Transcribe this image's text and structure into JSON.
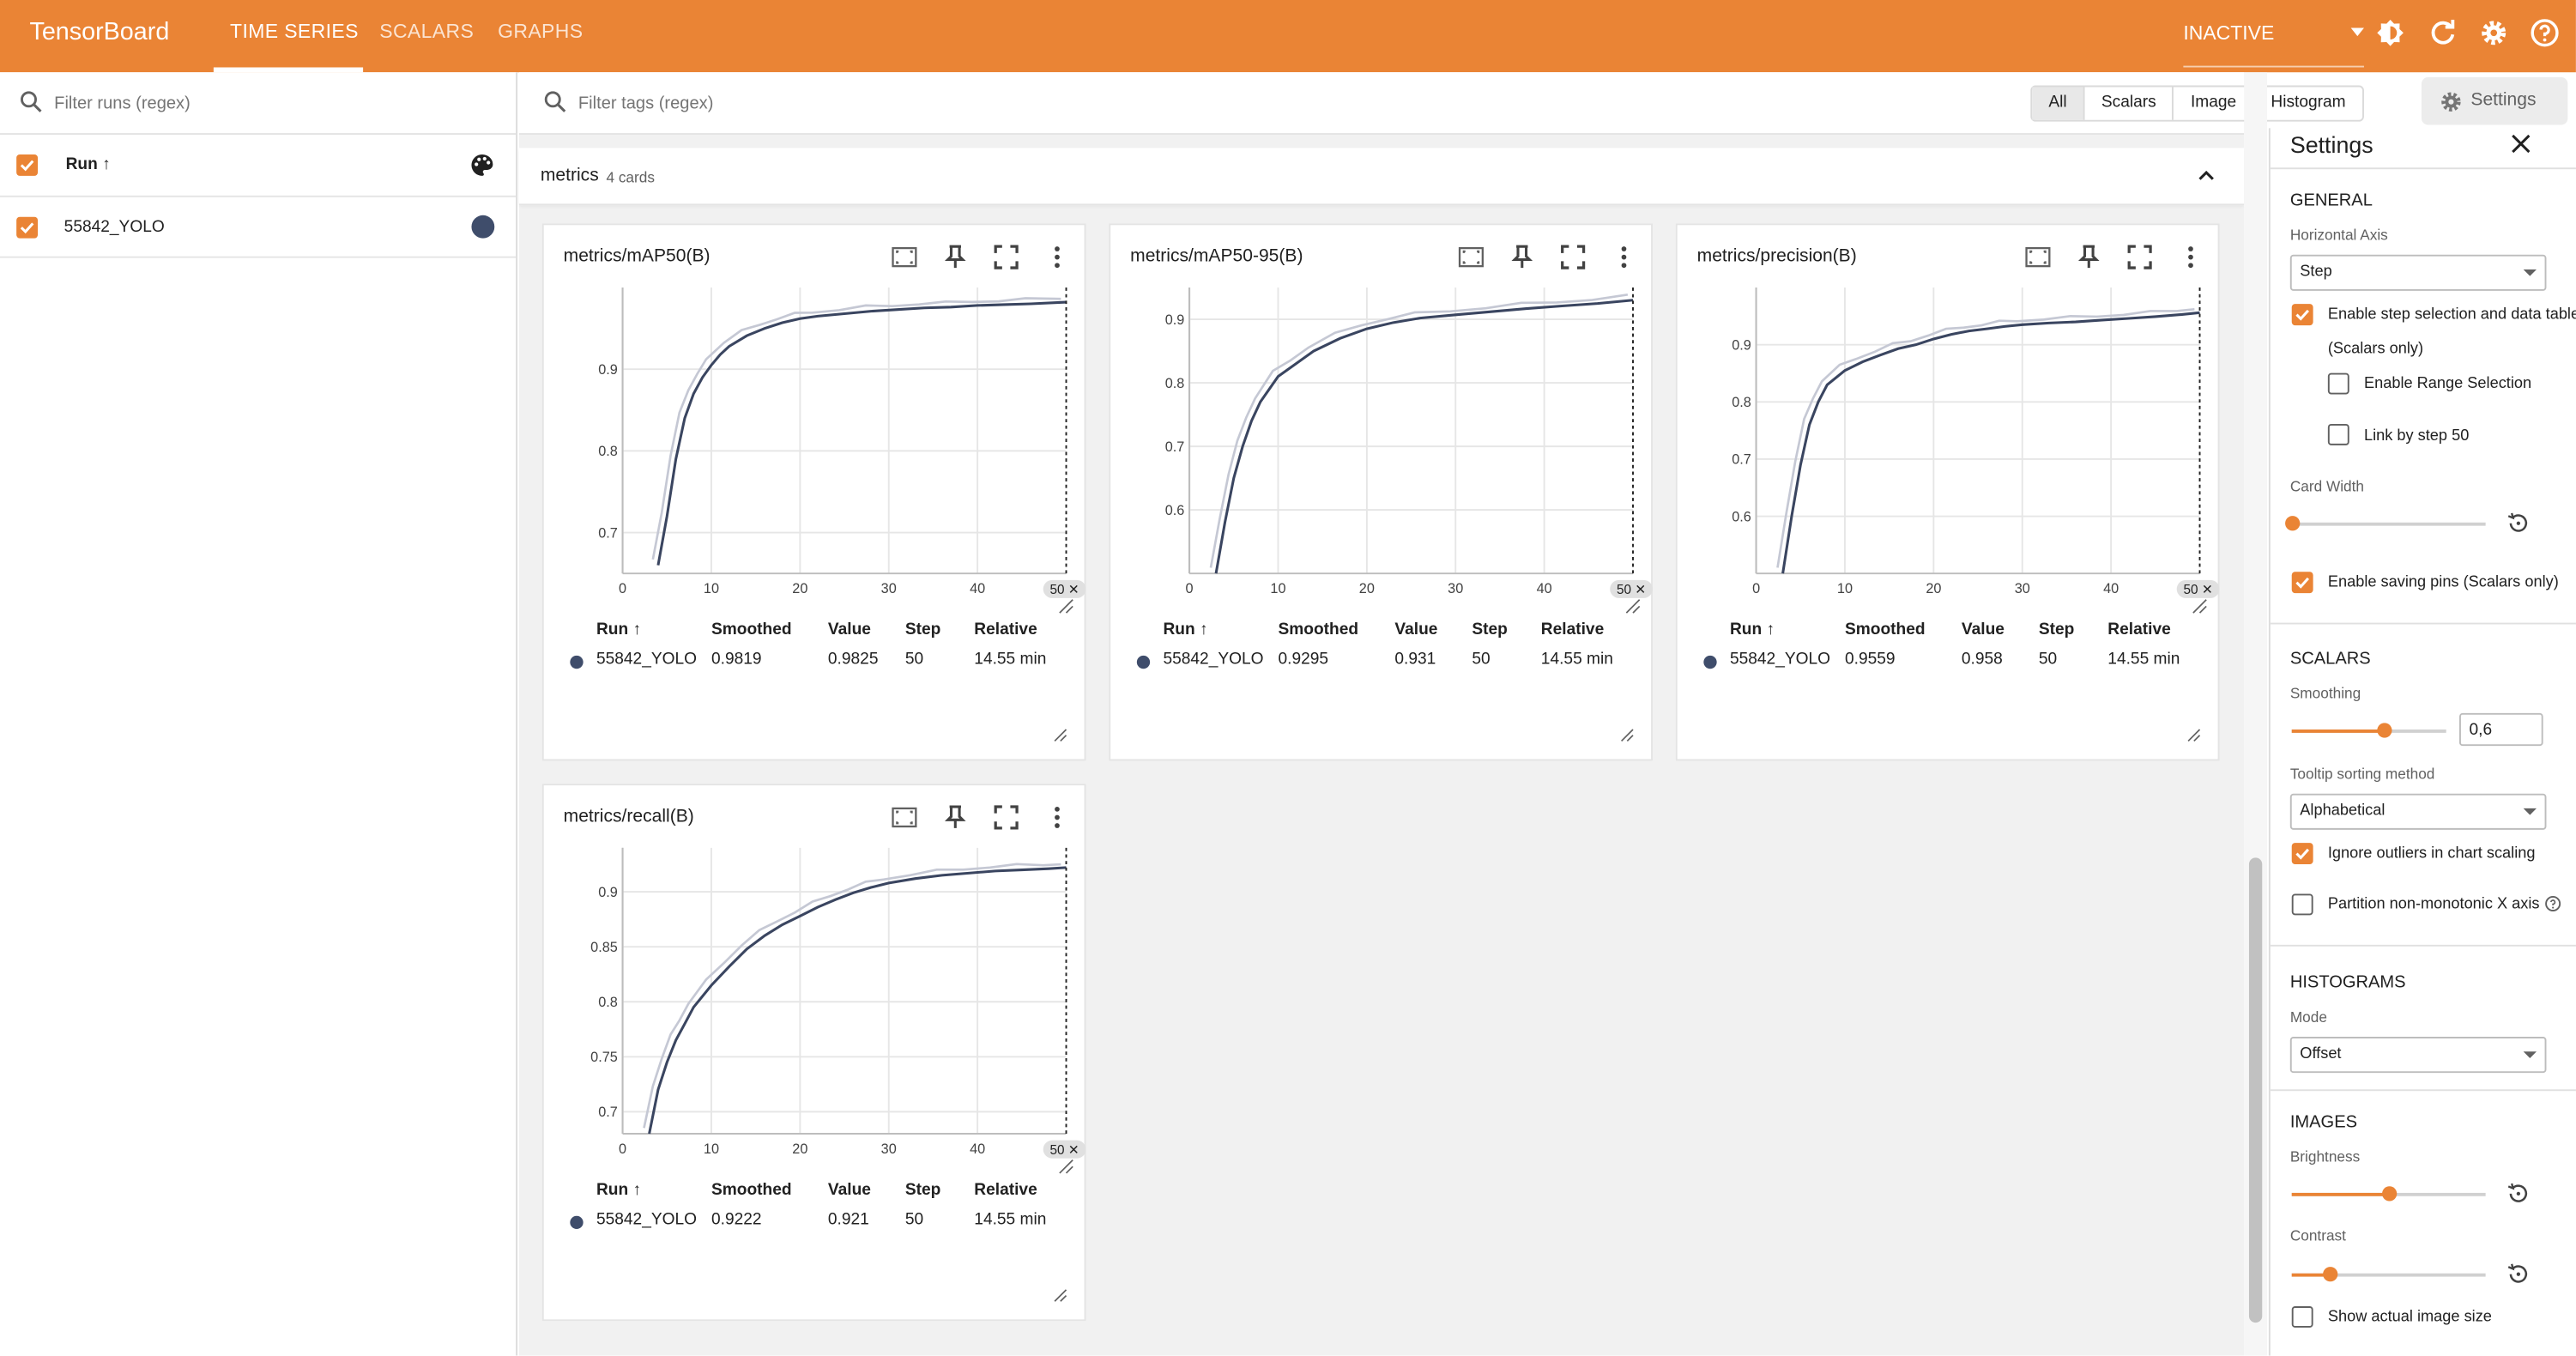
{
  "header": {
    "brand": "TensorBoard",
    "tabs": [
      "TIME SERIES",
      "SCALARS",
      "GRAPHS"
    ],
    "active_tab": "TIME SERIES",
    "reload_status": "INACTIVE",
    "icons": [
      "dark-mode-icon",
      "reload-icon",
      "settings-gear-icon",
      "help-icon"
    ],
    "bar_color": "#ea8435"
  },
  "sidebar": {
    "filter_placeholder": "Filter runs (regex)",
    "run_column_label": "Run ↑",
    "runs": [
      {
        "name": "55842_YOLO",
        "checked": true,
        "color": "#3f4d6b"
      }
    ]
  },
  "main": {
    "filter_placeholder": "Filter tags (regex)",
    "type_filters": [
      "All",
      "Scalars",
      "Image",
      "Histogram"
    ],
    "settings_button": "Settings",
    "group": {
      "name": "metrics",
      "count_label": "4 cards"
    },
    "table_headers": [
      "Run ↑",
      "Smoothed",
      "Value",
      "Step",
      "Relative"
    ],
    "x_ticks": [
      "0",
      "10",
      "20",
      "30",
      "40"
    ],
    "step_marker_label": "50 ✕",
    "cards": [
      {
        "title": "metrics/mAP50(B)",
        "y_ticks": [
          "0.9",
          "0.8",
          "0.7"
        ],
        "row": {
          "run": "55842_YOLO",
          "smoothed": "0.9819",
          "value": "0.9825",
          "step": "50",
          "relative": "14.55 min"
        }
      },
      {
        "title": "metrics/mAP50-95(B)",
        "y_ticks": [
          "0.9",
          "0.8",
          "0.7",
          "0.6"
        ],
        "row": {
          "run": "55842_YOLO",
          "smoothed": "0.9295",
          "value": "0.931",
          "step": "50",
          "relative": "14.55 min"
        }
      },
      {
        "title": "metrics/precision(B)",
        "y_ticks": [
          "0.9",
          "0.8",
          "0.7",
          "0.6"
        ],
        "row": {
          "run": "55842_YOLO",
          "smoothed": "0.9559",
          "value": "0.958",
          "step": "50",
          "relative": "14.55 min"
        }
      },
      {
        "title": "metrics/recall(B)",
        "y_ticks": [
          "0.9",
          "0.85",
          "0.8",
          "0.75",
          "0.7"
        ],
        "row": {
          "run": "55842_YOLO",
          "smoothed": "0.9222",
          "value": "0.921",
          "step": "50",
          "relative": "14.55 min"
        }
      }
    ]
  },
  "settings": {
    "title": "Settings",
    "general": {
      "title": "GENERAL",
      "horizontal_axis_label": "Horizontal Axis",
      "horizontal_axis_value": "Step",
      "step_selection_label": "Enable step selection and data table",
      "step_selection_sub": "(Scalars only)",
      "range_selection_label": "Enable Range Selection",
      "link_by_step_label": "Link by step 50",
      "card_width_label": "Card Width",
      "card_width_level": 0,
      "saving_pins_label": "Enable saving pins (Scalars only)"
    },
    "scalars": {
      "title": "SCALARS",
      "smoothing_label": "Smoothing",
      "smoothing_value": "0,6",
      "smoothing_level": 0.6,
      "tooltip_label": "Tooltip sorting method",
      "tooltip_value": "Alphabetical",
      "ignore_outliers_label": "Ignore outliers in chart scaling",
      "partition_label": "Partition non-monotonic X axis"
    },
    "histograms": {
      "title": "HISTOGRAMS",
      "mode_label": "Mode",
      "mode_value": "Offset"
    },
    "images": {
      "title": "IMAGES",
      "brightness_label": "Brightness",
      "brightness_level": 0.5,
      "contrast_label": "Contrast",
      "contrast_level": 0.2,
      "actual_size_label": "Show actual image size"
    }
  },
  "chart_data": [
    {
      "type": "line",
      "title": "metrics/mAP50(B)",
      "xlim": [
        0,
        50
      ],
      "ylim": [
        0.65,
        1.0
      ],
      "series": [
        {
          "name": "55842_YOLO",
          "x": [
            4,
            5,
            6,
            7,
            8,
            9,
            10,
            11,
            12,
            14,
            16,
            18,
            20,
            22,
            25,
            28,
            31,
            34,
            37,
            40,
            43,
            46,
            50
          ],
          "y": [
            0.66,
            0.72,
            0.79,
            0.84,
            0.87,
            0.89,
            0.905,
            0.918,
            0.928,
            0.941,
            0.95,
            0.957,
            0.962,
            0.965,
            0.968,
            0.971,
            0.973,
            0.975,
            0.976,
            0.978,
            0.979,
            0.98,
            0.982
          ]
        }
      ]
    },
    {
      "type": "line",
      "title": "metrics/mAP50-95(B)",
      "xlim": [
        0,
        50
      ],
      "ylim": [
        0.5,
        0.95
      ],
      "series": [
        {
          "name": "55842_YOLO",
          "x": [
            3,
            4,
            5,
            6,
            7,
            8,
            10,
            12,
            14,
            17,
            20,
            23,
            26,
            30,
            34,
            38,
            42,
            46,
            50
          ],
          "y": [
            0.5,
            0.58,
            0.65,
            0.7,
            0.74,
            0.77,
            0.81,
            0.83,
            0.85,
            0.87,
            0.885,
            0.895,
            0.902,
            0.907,
            0.912,
            0.917,
            0.921,
            0.925,
            0.93
          ]
        }
      ]
    },
    {
      "type": "line",
      "title": "metrics/precision(B)",
      "xlim": [
        0,
        50
      ],
      "ylim": [
        0.5,
        1.0
      ],
      "series": [
        {
          "name": "55842_YOLO",
          "x": [
            3,
            4,
            5,
            6,
            7,
            8,
            10,
            12,
            14,
            16,
            18,
            20,
            22,
            24,
            26,
            28,
            30,
            33,
            36,
            39,
            42,
            45,
            48,
            50
          ],
          "y": [
            0.5,
            0.6,
            0.69,
            0.76,
            0.8,
            0.83,
            0.855,
            0.87,
            0.882,
            0.893,
            0.9,
            0.91,
            0.918,
            0.924,
            0.928,
            0.932,
            0.935,
            0.938,
            0.94,
            0.943,
            0.946,
            0.949,
            0.953,
            0.956
          ]
        }
      ]
    },
    {
      "type": "line",
      "title": "metrics/recall(B)",
      "xlim": [
        0,
        50
      ],
      "ylim": [
        0.68,
        0.94
      ],
      "series": [
        {
          "name": "55842_YOLO",
          "x": [
            3,
            4,
            5,
            6,
            7,
            8,
            10,
            12,
            14,
            16,
            18,
            20,
            22,
            24,
            26,
            28,
            30,
            33,
            36,
            39,
            42,
            45,
            48,
            50
          ],
          "y": [
            0.68,
            0.72,
            0.745,
            0.765,
            0.78,
            0.795,
            0.815,
            0.832,
            0.848,
            0.86,
            0.87,
            0.878,
            0.886,
            0.893,
            0.899,
            0.904,
            0.908,
            0.912,
            0.915,
            0.917,
            0.919,
            0.92,
            0.921,
            0.922
          ]
        }
      ]
    }
  ]
}
